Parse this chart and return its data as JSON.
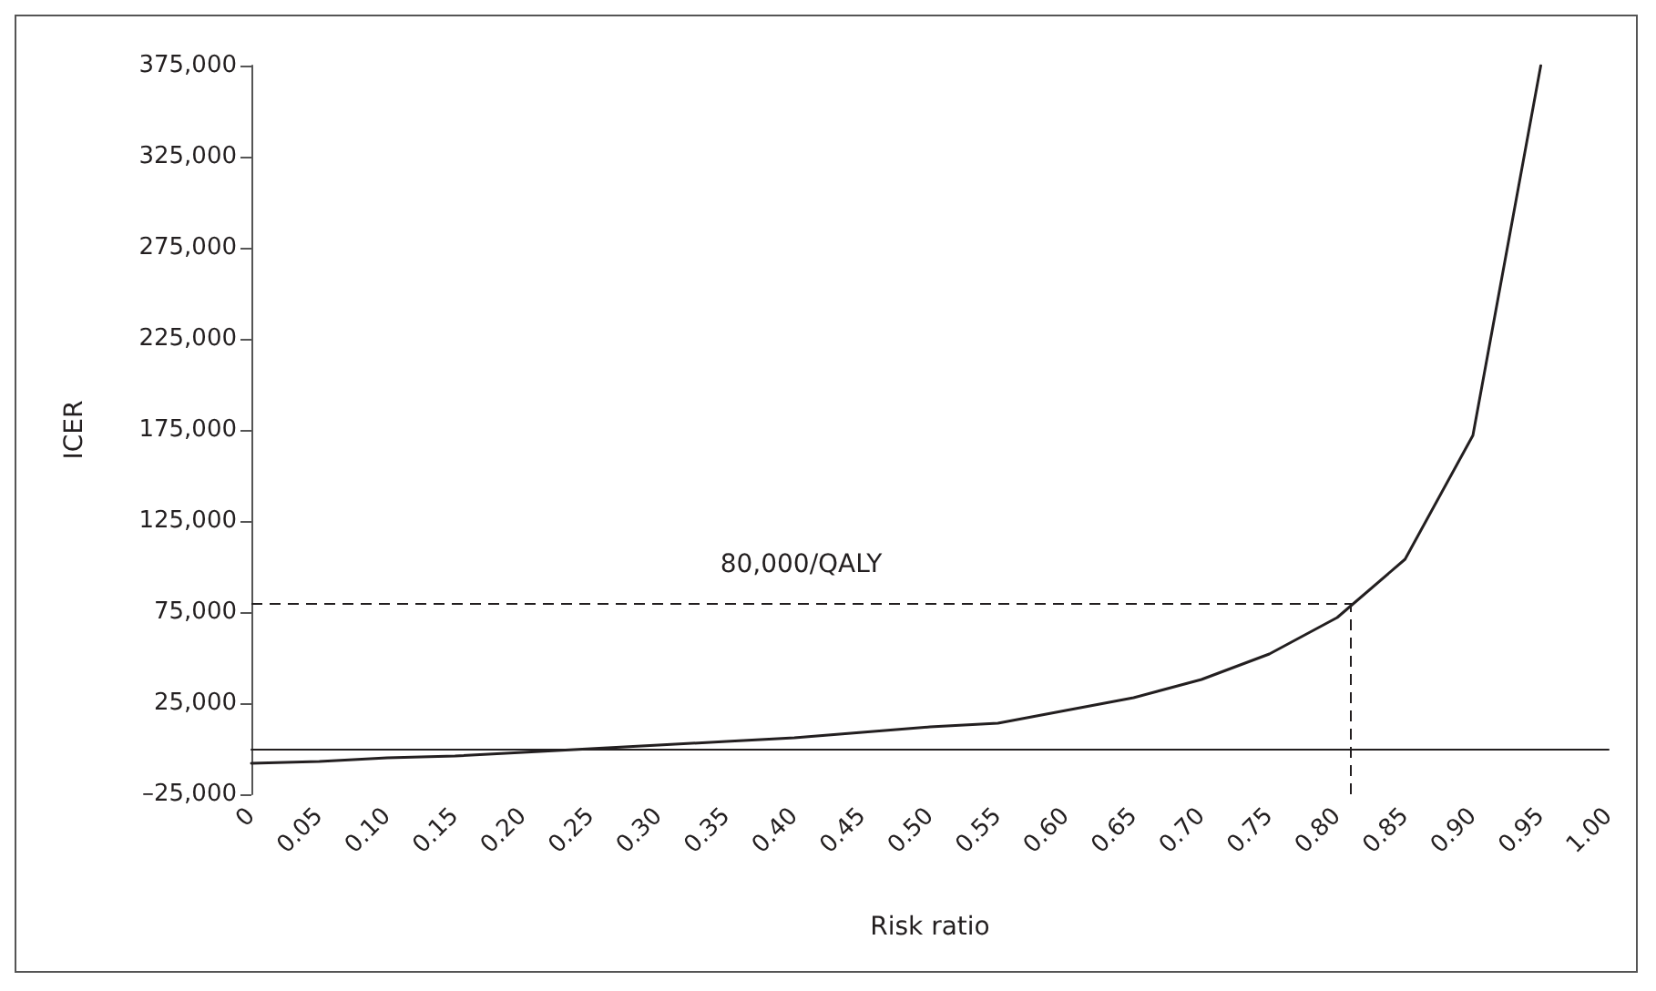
{
  "chart_data": {
    "type": "line",
    "xlabel": "Risk ratio",
    "ylabel": "ICER",
    "x": [
      0,
      0.05,
      0.1,
      0.15,
      0.2,
      0.25,
      0.3,
      0.35,
      0.4,
      0.45,
      0.5,
      0.55,
      0.6,
      0.65,
      0.7,
      0.75,
      0.8,
      0.85,
      0.9,
      0.95
    ],
    "series": [
      {
        "color": "#231f20",
        "values": [
          -8000,
          -7000,
          -5000,
          -4000,
          -2000,
          0,
          2000,
          4000,
          6000,
          9000,
          12000,
          14000,
          21000,
          28000,
          38000,
          52000,
          72000,
          104000,
          172000,
          375000
        ]
      }
    ],
    "xlim": [
      0,
      1
    ],
    "xticks": [
      0,
      0.05,
      {
        "value": 0.1,
        "label": "0.10"
      },
      0.15,
      {
        "value": 0.2,
        "label": "0.20"
      },
      0.25,
      {
        "value": 0.3,
        "label": "0.30"
      },
      0.35,
      {
        "value": 0.4,
        "label": "0.40"
      },
      0.45,
      {
        "value": 0.5,
        "label": "0.50"
      },
      0.55,
      {
        "value": 0.6,
        "label": "0.60"
      },
      0.65,
      {
        "value": 0.7,
        "label": "0.70"
      },
      0.75,
      {
        "value": 0.8,
        "label": "0.80"
      },
      0.85,
      {
        "value": 0.9,
        "label": "0.90"
      },
      0.95,
      {
        "value": 1,
        "label": "1.00"
      }
    ],
    "ylim": [
      -25000,
      375000
    ],
    "yticks": [
      {
        "value": -25000,
        "label": "–25,000"
      },
      {
        "value": 25000,
        "label": "25,000"
      },
      {
        "value": 75000,
        "label": "75,000"
      },
      {
        "value": 125000,
        "label": "125,000"
      },
      {
        "value": 175000,
        "label": "175,000"
      },
      {
        "value": 225000,
        "label": "225,000"
      },
      {
        "value": 275000,
        "label": "275,000"
      },
      {
        "value": 325000,
        "label": "325,000"
      },
      {
        "value": 375000,
        "label": "375,000"
      }
    ],
    "ref_lines": [
      {
        "axis": "y",
        "value": 80000,
        "label": "80,000/QALY",
        "line_style": "dashed",
        "color": "#231f20"
      },
      {
        "axis": "x",
        "value": 0.81,
        "line_style": "dashed",
        "color": "#231f20"
      }
    ],
    "grid": false,
    "marker": "none",
    "line_style": "solid"
  }
}
